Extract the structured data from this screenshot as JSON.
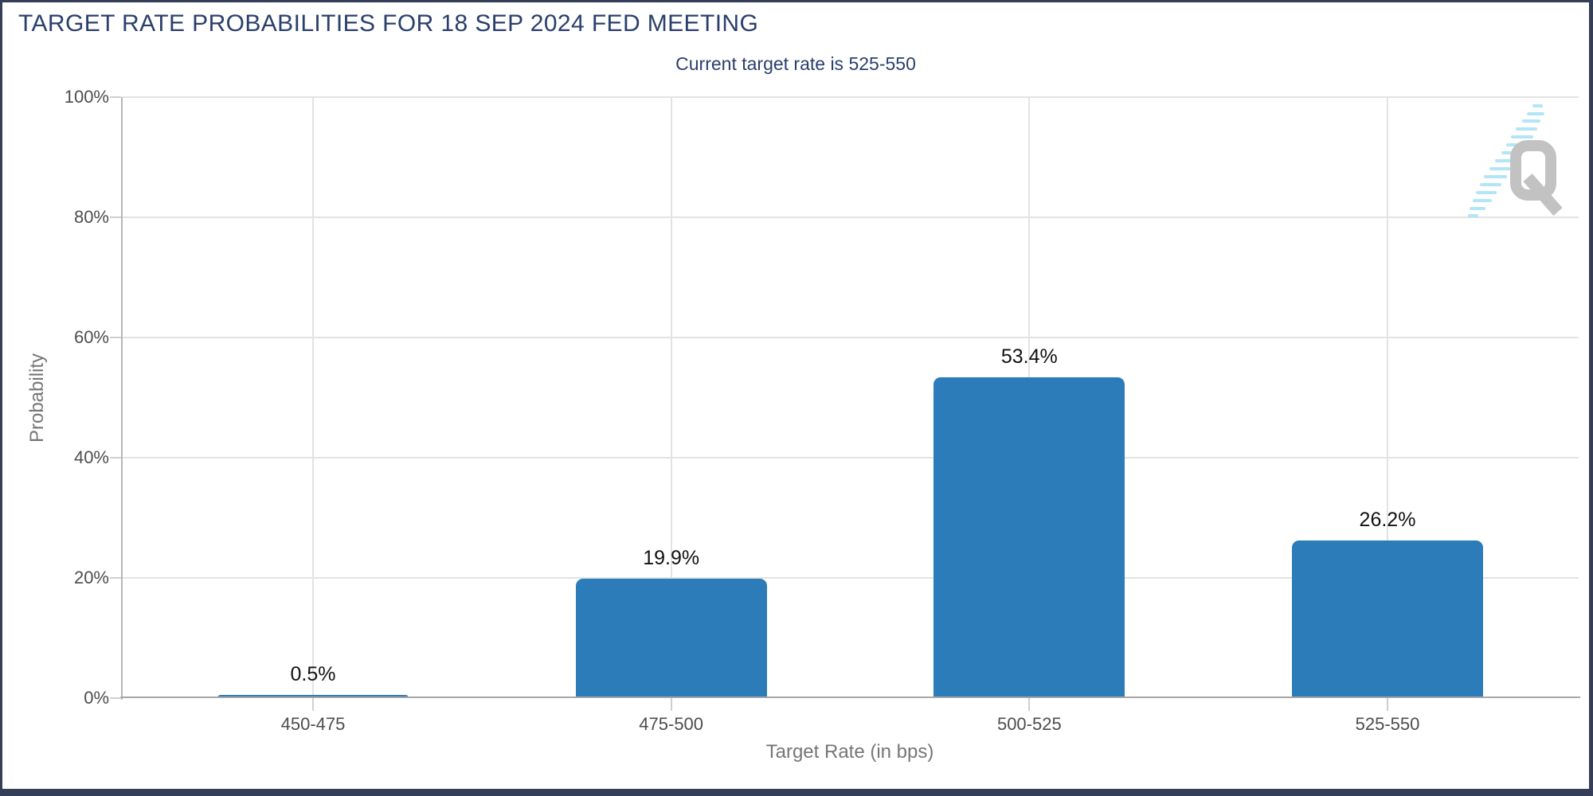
{
  "page": {
    "title": "TARGET RATE PROBABILITIES FOR 18 SEP 2024 FED MEETING",
    "subtitle": "Current target rate is 525-550"
  },
  "colors": {
    "bar": "#2b7cb9",
    "heading": "#2a3f6c",
    "grid": "#e3e3e3",
    "axis_line": "#a6a6a6",
    "tick_label": "#4d4d4d",
    "axis_title": "#767676",
    "value_label": "#111111",
    "frame_border": "#343e56",
    "watermark_gray": "#c2c2c2",
    "watermark_cyan": "#b2e5f6"
  },
  "watermark": {
    "letter": "Q",
    "name": "quantinsti-q-logo"
  },
  "chart_data": {
    "type": "bar",
    "title": "TARGET RATE PROBABILITIES FOR 18 SEP 2024 FED MEETING",
    "subtitle": "Current target rate is 525-550",
    "categories": [
      "450-475",
      "475-500",
      "500-525",
      "525-550"
    ],
    "values": [
      0.5,
      19.9,
      53.4,
      26.2
    ],
    "value_labels": [
      "0.5%",
      "19.9%",
      "53.4%",
      "26.2%"
    ],
    "xlabel": "Target Rate (in bps)",
    "ylabel": "Probability",
    "ylim": [
      0,
      100
    ],
    "ytick_step": 20,
    "ytick_labels": [
      "0%",
      "20%",
      "40%",
      "60%",
      "80%",
      "100%"
    ],
    "grid": true,
    "legend": false,
    "bar_color": "#2b7cb9"
  }
}
